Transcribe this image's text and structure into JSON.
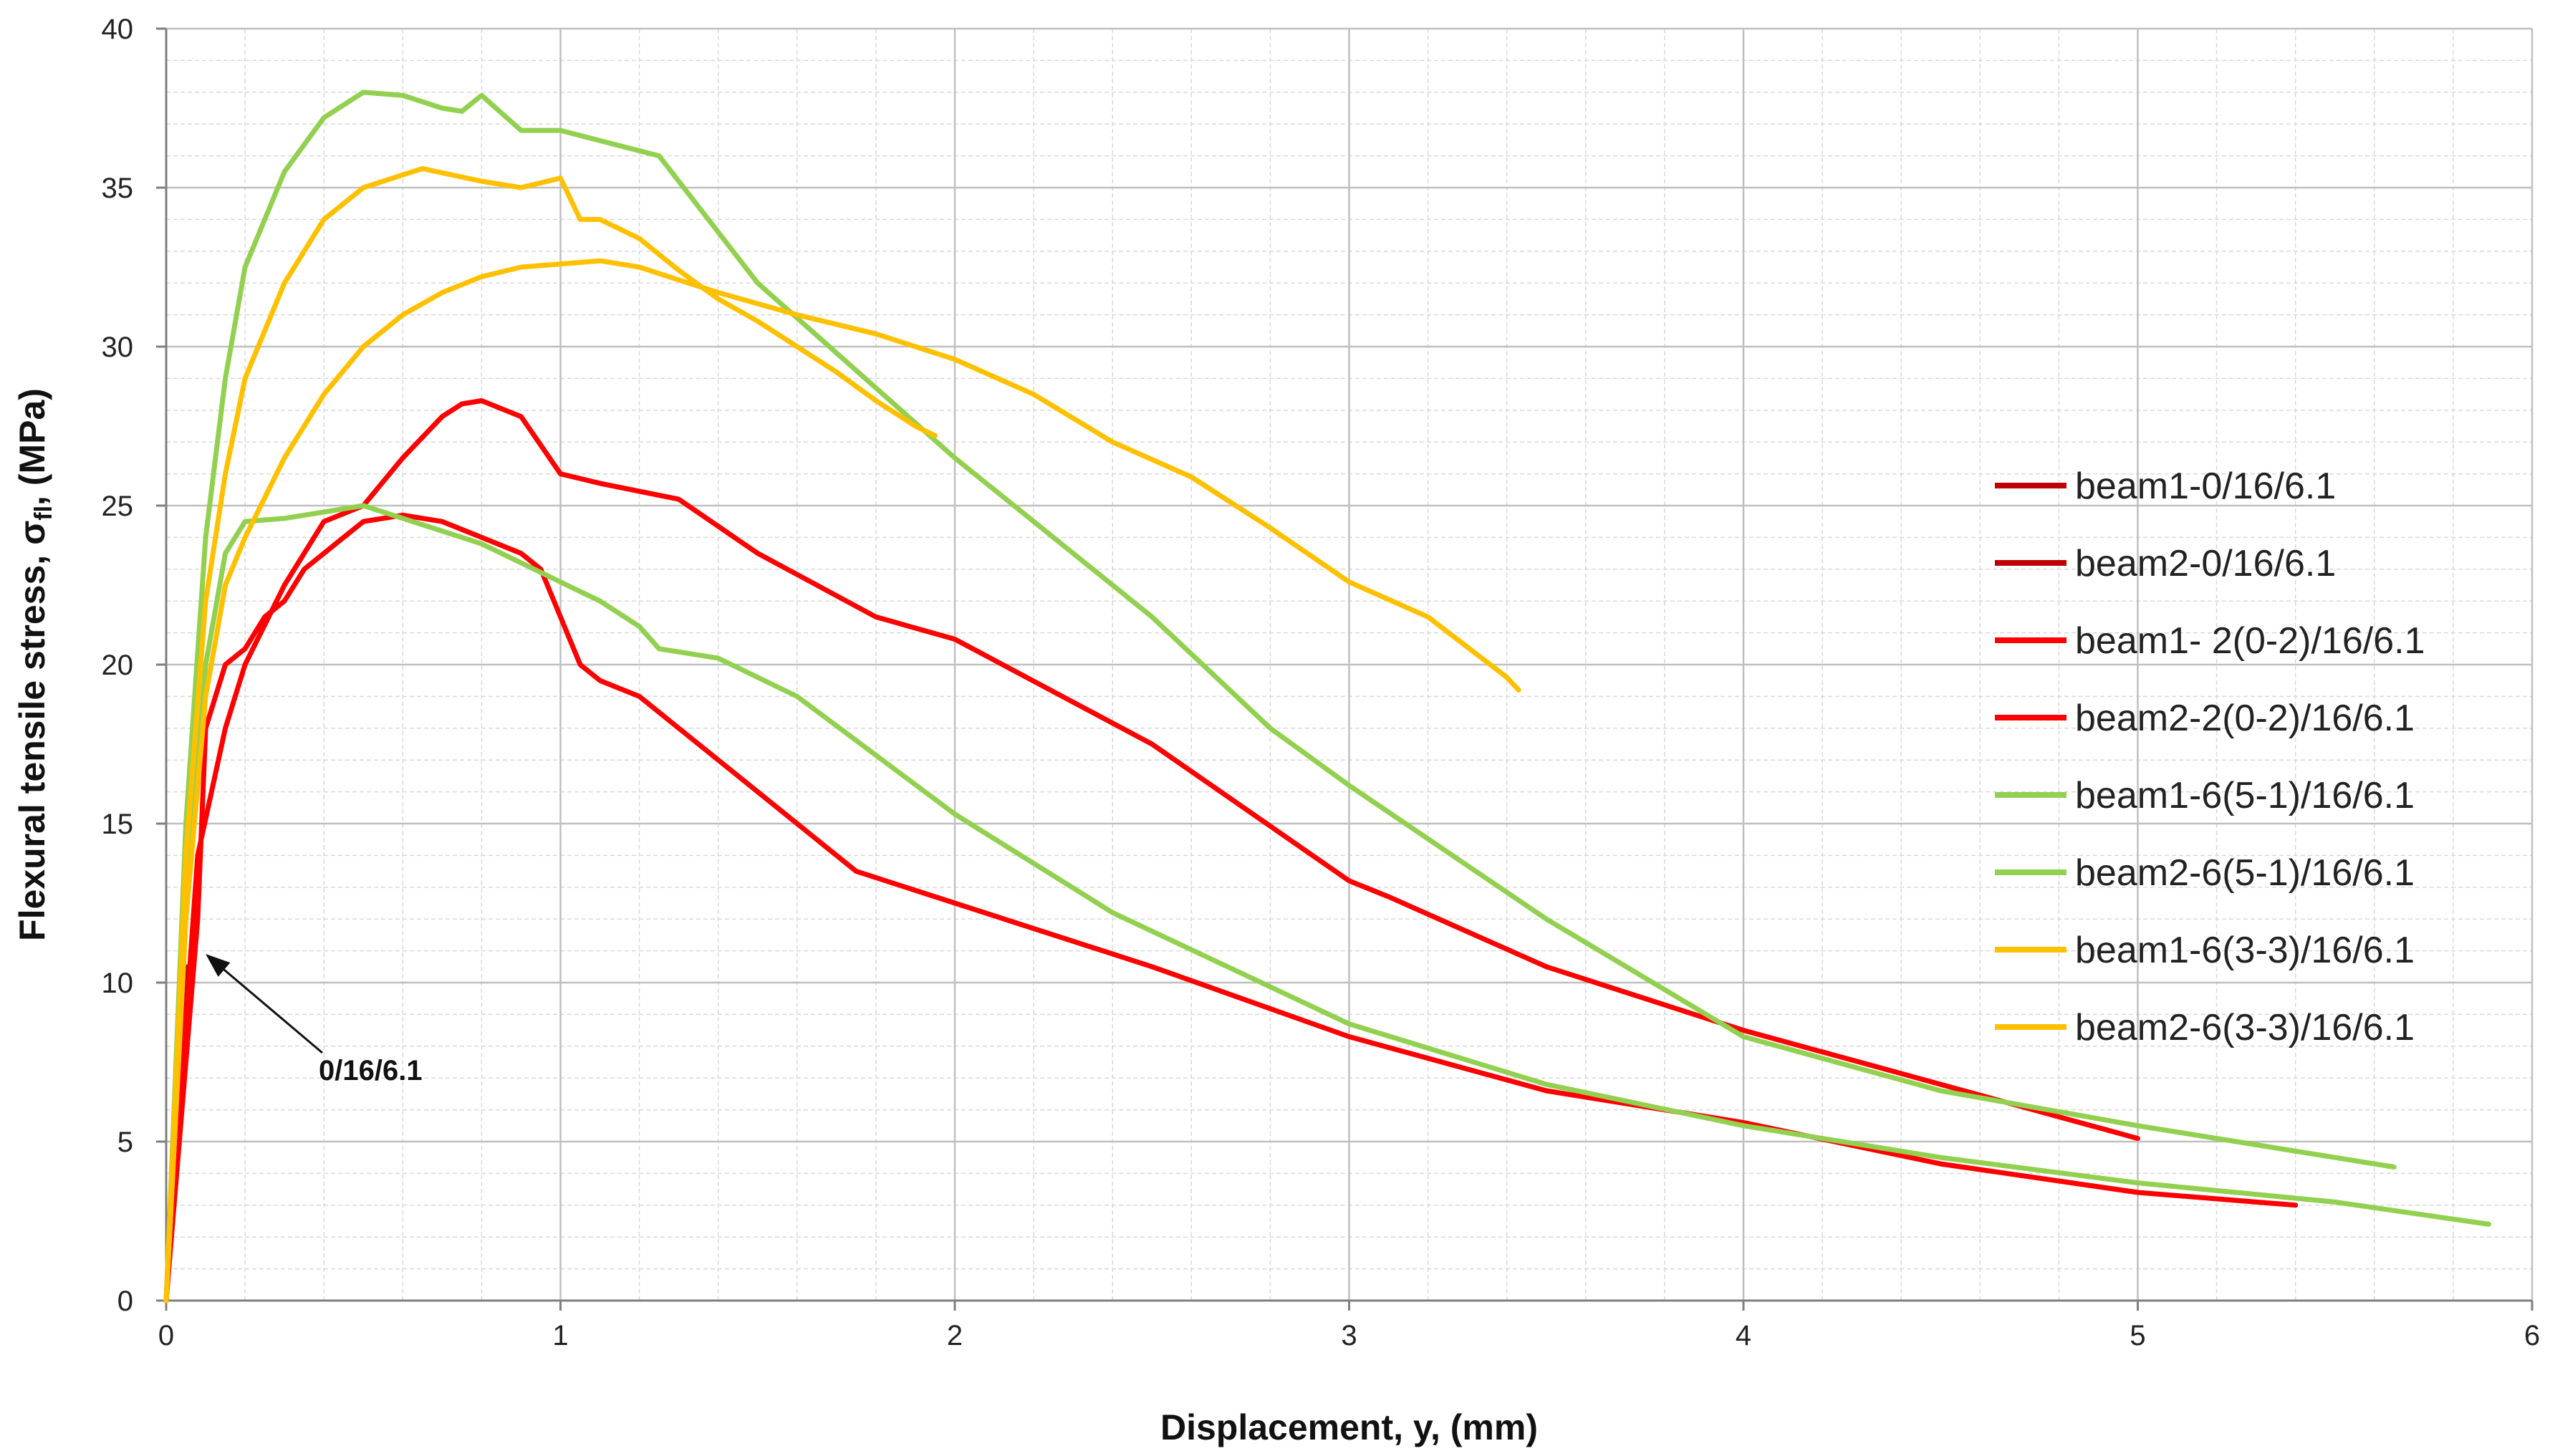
{
  "chart_data": {
    "type": "line",
    "title": "",
    "xlabel": "Displacement, y, (mm)",
    "ylabel_main": "Flexural tensile stress, σ",
    "ylabel_sub": "fl",
    "ylabel_tail": ", (MPa)",
    "xlim": [
      0,
      6
    ],
    "ylim": [
      0,
      40
    ],
    "xticks": [
      0,
      1,
      2,
      3,
      4,
      5,
      6
    ],
    "yticks": [
      0,
      5,
      10,
      15,
      20,
      25,
      30,
      35,
      40
    ],
    "grid": true,
    "legend_position": "right",
    "annotation": {
      "text": "0/16/6.1",
      "x": 0.1,
      "y": 10.9
    },
    "series": [
      {
        "name": "beam1-0/16/6.1",
        "color": "#c00000",
        "points": [
          [
            0,
            0
          ],
          [
            0.05,
            10.5
          ]
        ]
      },
      {
        "name": "beam2-0/16/6.1",
        "color": "#c00000",
        "points": [
          [
            0,
            0
          ],
          [
            0.04,
            9.8
          ]
        ]
      },
      {
        "name": "beam1- 2(0-2)/16/6.1",
        "color": "#ff0000",
        "points": [
          [
            0,
            0
          ],
          [
            0.08,
            12
          ],
          [
            0.1,
            18
          ],
          [
            0.15,
            20
          ],
          [
            0.2,
            20.5
          ],
          [
            0.25,
            21.5
          ],
          [
            0.3,
            22
          ],
          [
            0.35,
            23
          ],
          [
            0.4,
            23.5
          ],
          [
            0.45,
            24
          ],
          [
            0.5,
            24.5
          ],
          [
            0.55,
            24.6
          ],
          [
            0.6,
            24.7
          ],
          [
            0.7,
            24.5
          ],
          [
            0.8,
            24
          ],
          [
            0.9,
            23.5
          ],
          [
            0.95,
            23
          ],
          [
            1.0,
            21.5
          ],
          [
            1.05,
            20
          ],
          [
            1.1,
            19.5
          ],
          [
            1.2,
            19
          ],
          [
            1.3,
            18
          ],
          [
            1.4,
            17
          ],
          [
            1.5,
            16
          ],
          [
            1.6,
            15
          ],
          [
            1.7,
            14
          ],
          [
            1.75,
            13.5
          ],
          [
            2.0,
            12.5
          ],
          [
            2.5,
            10.5
          ],
          [
            3.0,
            8.3
          ],
          [
            3.5,
            6.6
          ],
          [
            4.0,
            5.6
          ],
          [
            4.5,
            4.3
          ],
          [
            5.0,
            3.4
          ],
          [
            5.4,
            3.0
          ]
        ]
      },
      {
        "name": "beam2-2(0-2)/16/6.1",
        "color": "#ff0000",
        "points": [
          [
            0,
            0
          ],
          [
            0.08,
            14
          ],
          [
            0.15,
            18
          ],
          [
            0.2,
            20
          ],
          [
            0.3,
            22.5
          ],
          [
            0.4,
            24.5
          ],
          [
            0.5,
            25
          ],
          [
            0.6,
            26.5
          ],
          [
            0.7,
            27.8
          ],
          [
            0.75,
            28.2
          ],
          [
            0.8,
            28.3
          ],
          [
            0.9,
            27.8
          ],
          [
            1.0,
            26
          ],
          [
            1.1,
            25.7
          ],
          [
            1.3,
            25.2
          ],
          [
            1.5,
            23.5
          ],
          [
            1.8,
            21.5
          ],
          [
            2.0,
            20.8
          ],
          [
            2.5,
            17.5
          ],
          [
            3.0,
            13.2
          ],
          [
            3.1,
            12.7
          ],
          [
            3.5,
            10.5
          ],
          [
            4.0,
            8.5
          ],
          [
            4.5,
            6.8
          ],
          [
            5.0,
            5.1
          ]
        ]
      },
      {
        "name": "beam1-6(5-1)/16/6.1",
        "color": "#92d050",
        "points": [
          [
            0,
            0
          ],
          [
            0.05,
            12
          ],
          [
            0.1,
            20
          ],
          [
            0.15,
            23.5
          ],
          [
            0.2,
            24.5
          ],
          [
            0.3,
            24.6
          ],
          [
            0.4,
            24.8
          ],
          [
            0.5,
            25
          ],
          [
            0.6,
            24.6
          ],
          [
            0.7,
            24.2
          ],
          [
            0.8,
            23.8
          ],
          [
            0.9,
            23.2
          ],
          [
            1.0,
            22.6
          ],
          [
            1.1,
            22.0
          ],
          [
            1.2,
            21.2
          ],
          [
            1.25,
            20.5
          ],
          [
            1.4,
            20.2
          ],
          [
            1.6,
            19
          ],
          [
            2.0,
            15.3
          ],
          [
            2.4,
            12.2
          ],
          [
            3.0,
            8.7
          ],
          [
            3.5,
            6.8
          ],
          [
            4.0,
            5.5
          ],
          [
            4.5,
            4.5
          ],
          [
            5.0,
            3.7
          ],
          [
            5.5,
            3.1
          ],
          [
            5.89,
            2.4
          ]
        ]
      },
      {
        "name": "beam2-6(5-1)/16/6.1",
        "color": "#92d050",
        "points": [
          [
            0,
            0
          ],
          [
            0.05,
            15
          ],
          [
            0.1,
            24
          ],
          [
            0.15,
            29
          ],
          [
            0.2,
            32.5
          ],
          [
            0.3,
            35.5
          ],
          [
            0.4,
            37.2
          ],
          [
            0.5,
            38
          ],
          [
            0.6,
            37.9
          ],
          [
            0.7,
            37.5
          ],
          [
            0.75,
            37.4
          ],
          [
            0.8,
            37.9
          ],
          [
            0.9,
            36.8
          ],
          [
            1.0,
            36.8
          ],
          [
            1.25,
            36
          ],
          [
            1.5,
            32
          ],
          [
            2.0,
            26.5
          ],
          [
            2.5,
            21.5
          ],
          [
            2.8,
            18
          ],
          [
            3.0,
            16.2
          ],
          [
            3.5,
            12
          ],
          [
            4.0,
            8.3
          ],
          [
            4.5,
            6.6
          ],
          [
            5.0,
            5.5
          ],
          [
            5.5,
            4.5
          ],
          [
            5.65,
            4.2
          ]
        ]
      },
      {
        "name": "beam1-6(3-3)/16/6.1",
        "color": "#ffc000",
        "points": [
          [
            0,
            0
          ],
          [
            0.05,
            12
          ],
          [
            0.1,
            19
          ],
          [
            0.15,
            22.5
          ],
          [
            0.2,
            24
          ],
          [
            0.3,
            26.5
          ],
          [
            0.4,
            28.5
          ],
          [
            0.5,
            30
          ],
          [
            0.6,
            31
          ],
          [
            0.7,
            31.7
          ],
          [
            0.8,
            32.2
          ],
          [
            0.9,
            32.5
          ],
          [
            1.0,
            32.6
          ],
          [
            1.1,
            32.7
          ],
          [
            1.2,
            32.5
          ],
          [
            1.3,
            32.1
          ],
          [
            1.4,
            31.7
          ],
          [
            1.6,
            31
          ],
          [
            1.8,
            30.4
          ],
          [
            2.0,
            29.6
          ],
          [
            2.2,
            28.5
          ],
          [
            2.4,
            27
          ],
          [
            2.6,
            25.9
          ],
          [
            2.8,
            24.3
          ],
          [
            3.0,
            22.6
          ],
          [
            3.2,
            21.5
          ],
          [
            3.4,
            19.6
          ],
          [
            3.43,
            19.2
          ]
        ]
      },
      {
        "name": "beam2-6(3-3)/16/6.1",
        "color": "#ffc000",
        "points": [
          [
            0,
            0
          ],
          [
            0.05,
            14
          ],
          [
            0.1,
            22
          ],
          [
            0.15,
            26
          ],
          [
            0.2,
            29
          ],
          [
            0.3,
            32
          ],
          [
            0.4,
            34
          ],
          [
            0.5,
            35
          ],
          [
            0.6,
            35.4
          ],
          [
            0.65,
            35.6
          ],
          [
            0.8,
            35.2
          ],
          [
            0.9,
            35
          ],
          [
            1.0,
            35.3
          ],
          [
            1.05,
            34
          ],
          [
            1.1,
            34
          ],
          [
            1.2,
            33.4
          ],
          [
            1.3,
            32.4
          ],
          [
            1.4,
            31.5
          ],
          [
            1.5,
            30.8
          ],
          [
            1.6,
            30
          ],
          [
            1.7,
            29.2
          ],
          [
            1.8,
            28.3
          ],
          [
            1.9,
            27.5
          ],
          [
            1.95,
            27.2
          ]
        ]
      }
    ]
  }
}
